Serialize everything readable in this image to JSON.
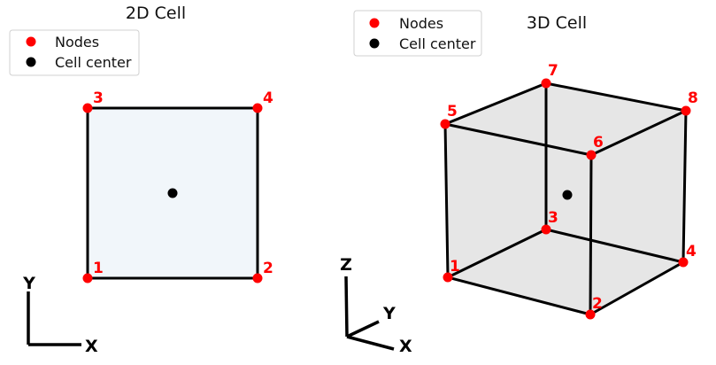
{
  "colors": {
    "node": "#ff0000",
    "center": "#000000",
    "edge": "#000000",
    "face_2d": "#f1f6fa",
    "face_3d": "#e5e5e5"
  },
  "legend_2d": {
    "items": [
      {
        "label": "Nodes",
        "marker": "red-circle"
      },
      {
        "label": "Cell center",
        "marker": "black-circle"
      }
    ]
  },
  "legend_3d": {
    "items": [
      {
        "label": "Nodes",
        "marker": "red-circle"
      },
      {
        "label": "Cell center",
        "marker": "black-circle"
      }
    ]
  },
  "cell_2d": {
    "title": "2D Cell",
    "nodes": [
      {
        "id": "1",
        "label": "1"
      },
      {
        "id": "2",
        "label": "2"
      },
      {
        "id": "3",
        "label": "3"
      },
      {
        "id": "4",
        "label": "4"
      }
    ],
    "axes": {
      "x": "X",
      "y": "Y"
    }
  },
  "cell_3d": {
    "title": "3D Cell",
    "nodes": [
      {
        "id": "1",
        "label": "1"
      },
      {
        "id": "2",
        "label": "2"
      },
      {
        "id": "3",
        "label": "3"
      },
      {
        "id": "4",
        "label": "4"
      },
      {
        "id": "5",
        "label": "5"
      },
      {
        "id": "6",
        "label": "6"
      },
      {
        "id": "7",
        "label": "7"
      },
      {
        "id": "8",
        "label": "8"
      }
    ],
    "axes": {
      "x": "X",
      "y": "Y",
      "z": "Z"
    }
  }
}
